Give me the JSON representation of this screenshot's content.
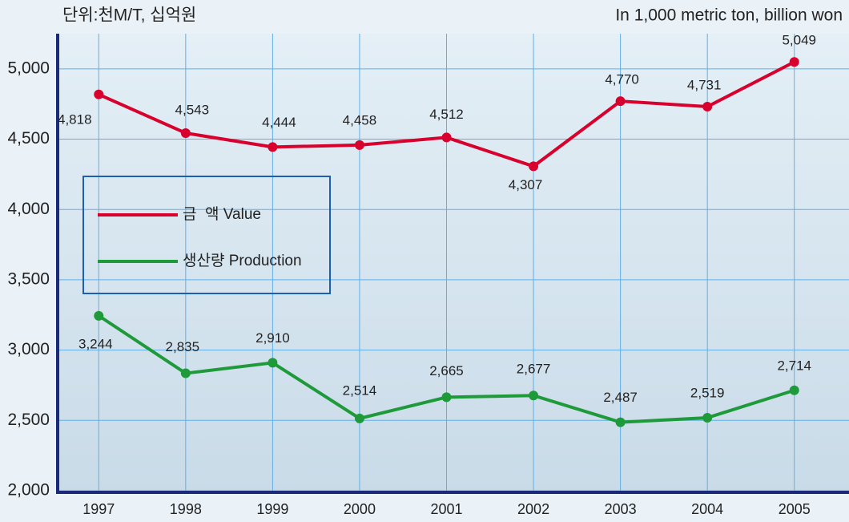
{
  "chart_data": {
    "type": "line",
    "unit_label_ko": "단위:천M/T, 십억원",
    "unit_label_en": "In 1,000 metric ton, billion won",
    "categories": [
      "1997",
      "1998",
      "1999",
      "2000",
      "2001",
      "2002",
      "2003",
      "2004",
      "2005"
    ],
    "series": [
      {
        "name": "금  액 Value",
        "color": "#d8002c",
        "values": [
          4818,
          4543,
          4444,
          4458,
          4512,
          4307,
          4770,
          4731,
          5049
        ],
        "value_labels": [
          "4,818",
          "4,543",
          "4,444",
          "4,458",
          "4,512",
          "4,307",
          "4,770",
          "4,731",
          "5,049"
        ]
      },
      {
        "name": "생산량 Production",
        "color": "#1e9a3a",
        "values": [
          3244,
          2835,
          2910,
          2514,
          2665,
          2677,
          2487,
          2519,
          2714
        ],
        "value_labels": [
          "3,244",
          "2,835",
          "2,910",
          "2,514",
          "2,665",
          "2,677",
          "2,487",
          "2,519",
          "2,714"
        ]
      }
    ],
    "ylim": [
      2000,
      5250
    ],
    "yticks": [
      {
        "value": 2000,
        "label": "2,000"
      },
      {
        "value": 2500,
        "label": "2,500"
      },
      {
        "value": 3000,
        "label": "3,000"
      },
      {
        "value": 3500,
        "label": "3,500"
      },
      {
        "value": 4000,
        "label": "4,000"
      },
      {
        "value": 4500,
        "label": "4,500"
      },
      {
        "value": 5000,
        "label": "5,000"
      }
    ],
    "grid": true
  }
}
